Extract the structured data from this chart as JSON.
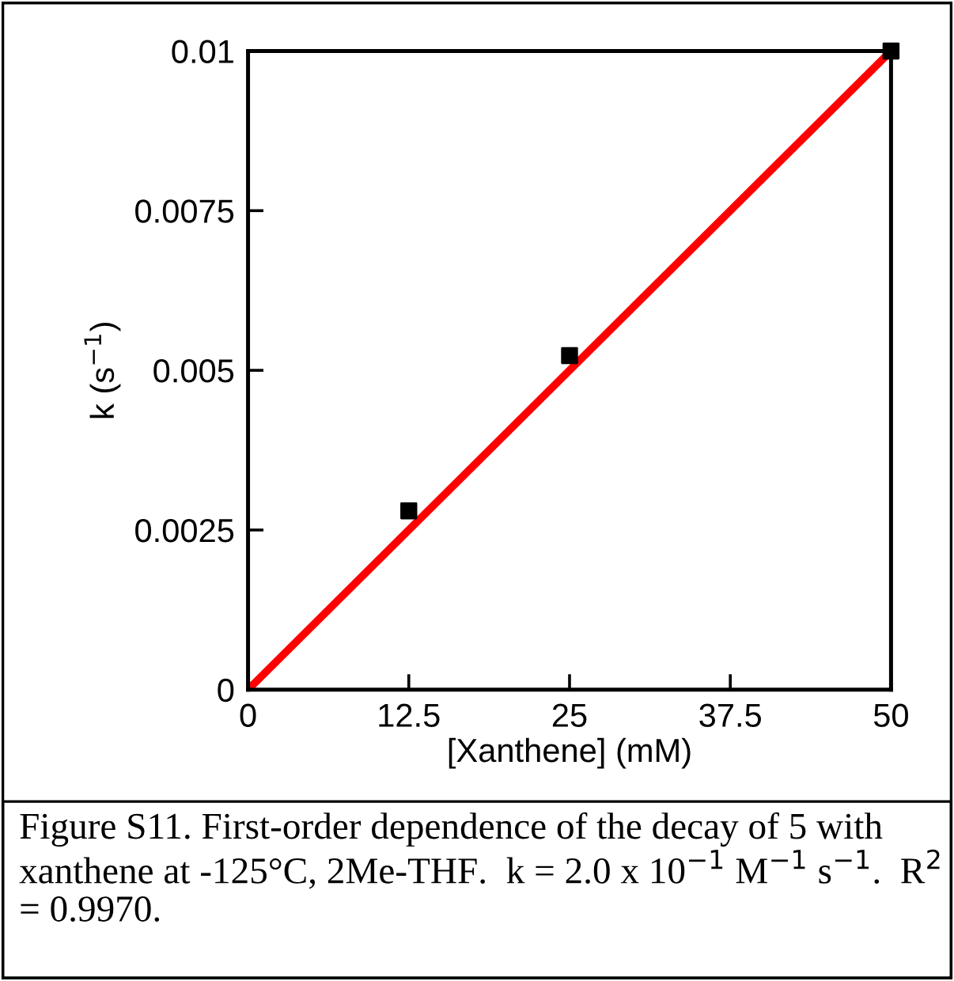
{
  "chart_data": {
    "type": "scatter",
    "xlabel": "[Xanthene] (mM)",
    "ylabel": "k (s$^{−1}$)",
    "x": [
      12.5,
      25,
      50
    ],
    "series": [
      {
        "type": "line",
        "x": [
          0,
          50
        ],
        "values": [
          0,
          0.01
        ],
        "color": "#ff0000",
        "marker": "none",
        "line_style": "solid"
      },
      {
        "values": [
          0.0028,
          0.00523,
          0.01
        ],
        "color": "#000000",
        "marker": "square"
      }
    ],
    "xlim": [
      0,
      50
    ],
    "ylim": [
      0,
      0.01
    ],
    "xticks": [
      0,
      12.5,
      25,
      37.5,
      50
    ],
    "yticks": [
      0,
      0.0025,
      0.005,
      0.0075,
      0.01
    ],
    "grid": false,
    "legend": false,
    "annotations": [
      "Figure S11. First-order dependence of the decay of 5 with xanthene at -125°C, 2Me-THF.  k = 2.0 x 10$^{−1}$ M$^{−1}$ s$^{−1}$.  R$^{2}$ = 0.9970."
    ]
  }
}
